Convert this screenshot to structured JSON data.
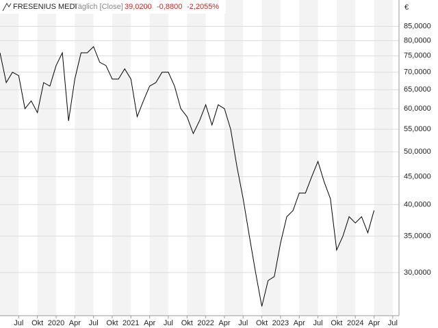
{
  "chart_data": {
    "type": "line",
    "title": "FRESENIUS MEDI",
    "subtitle": "Täglich [Close]",
    "last": {
      "value": 39.02,
      "label": "39,0200"
    },
    "change": {
      "value": -0.88,
      "label": "-0,8800"
    },
    "change_pct": {
      "value": -2.2055,
      "label": "-2,2055%"
    },
    "y_unit": "€",
    "log_scale": true,
    "grid": true,
    "x": [
      "2019-04",
      "2019-05",
      "2019-06",
      "2019-07",
      "2019-08",
      "2019-09",
      "2019-10",
      "2019-11",
      "2019-12",
      "2020-01",
      "2020-02",
      "2020-03",
      "2020-04",
      "2020-05",
      "2020-06",
      "2020-07",
      "2020-08",
      "2020-09",
      "2020-10",
      "2020-11",
      "2020-12",
      "2021-01",
      "2021-02",
      "2021-03",
      "2021-04",
      "2021-05",
      "2021-06",
      "2021-07",
      "2021-08",
      "2021-09",
      "2021-10",
      "2021-11",
      "2021-12",
      "2022-01",
      "2022-02",
      "2022-03",
      "2022-04",
      "2022-05",
      "2022-06",
      "2022-07",
      "2022-08",
      "2022-09",
      "2022-10",
      "2022-11",
      "2022-12",
      "2023-01",
      "2023-02",
      "2023-03",
      "2023-04",
      "2023-05",
      "2023-06",
      "2023-07",
      "2023-08",
      "2023-09",
      "2023-10",
      "2023-11",
      "2023-12",
      "2024-01",
      "2024-02",
      "2024-03",
      "2024-04"
    ],
    "series": [
      {
        "name": "FRESENIUS MEDI",
        "color": "#000000",
        "values": [
          76,
          67,
          70,
          69,
          60,
          62,
          59,
          67,
          66,
          72,
          76,
          57,
          68,
          76,
          76,
          78,
          73,
          72,
          68,
          68,
          71,
          68,
          58,
          62,
          66,
          67,
          70,
          70,
          66,
          60,
          58,
          54,
          57,
          61,
          56,
          61,
          60,
          55,
          47,
          41,
          35,
          30,
          26,
          29,
          29.5,
          34,
          38,
          39,
          42,
          42,
          45,
          48,
          44,
          41,
          33,
          35,
          38,
          37,
          38,
          35.5,
          39.02
        ]
      }
    ],
    "xlim": [
      "2019-04",
      "2024-08"
    ],
    "xticks": [
      {
        "value": "2019-07",
        "label": "Jul"
      },
      {
        "value": "2019-10",
        "label": "Okt"
      },
      {
        "value": "2020-01",
        "label": "2020"
      },
      {
        "value": "2020-04",
        "label": "Apr"
      },
      {
        "value": "2020-07",
        "label": "Jul"
      },
      {
        "value": "2020-10",
        "label": "Okt"
      },
      {
        "value": "2021-01",
        "label": "2021"
      },
      {
        "value": "2021-04",
        "label": "Apr"
      },
      {
        "value": "2021-07",
        "label": "Jul"
      },
      {
        "value": "2021-10",
        "label": "Okt"
      },
      {
        "value": "2022-01",
        "label": "2022"
      },
      {
        "value": "2022-04",
        "label": "Apr"
      },
      {
        "value": "2022-07",
        "label": "Jul"
      },
      {
        "value": "2022-10",
        "label": "Okt"
      },
      {
        "value": "2023-01",
        "label": "2023"
      },
      {
        "value": "2023-04",
        "label": "Apr"
      },
      {
        "value": "2023-07",
        "label": "Jul"
      },
      {
        "value": "2023-10",
        "label": "Okt"
      },
      {
        "value": "2024-01",
        "label": "2024"
      },
      {
        "value": "2024-04",
        "label": "Apr"
      },
      {
        "value": "2024-07",
        "label": "Jul"
      }
    ],
    "ylim": [
      25,
      95
    ],
    "yticks": [
      {
        "value": 30,
        "label": "30,0000"
      },
      {
        "value": 35,
        "label": "35,0000"
      },
      {
        "value": 40,
        "label": "40,0000"
      },
      {
        "value": 45,
        "label": "45,0000"
      },
      {
        "value": 50,
        "label": "50,0000"
      },
      {
        "value": 55,
        "label": "55,0000"
      },
      {
        "value": 60,
        "label": "60,0000"
      },
      {
        "value": 65,
        "label": "65,0000"
      },
      {
        "value": 70,
        "label": "70,0000"
      },
      {
        "value": 75,
        "label": "75,0000"
      },
      {
        "value": 80,
        "label": "80,0000"
      },
      {
        "value": 85,
        "label": "85,0000"
      }
    ]
  }
}
